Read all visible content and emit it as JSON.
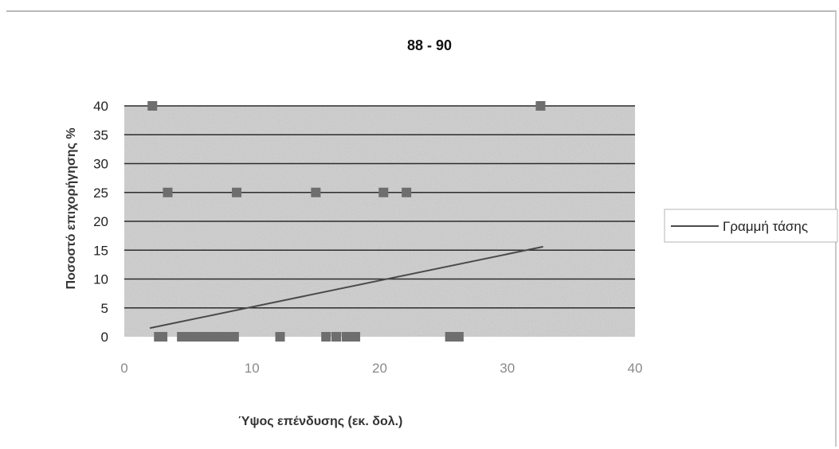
{
  "chart_data": {
    "type": "scatter",
    "title": "88 - 90",
    "xlabel": "Ύψος επένδυσης (εκ. δολ.)",
    "ylabel": "Ποσοστό επιχορήγησης %",
    "xlim": [
      0,
      40
    ],
    "ylim": [
      0,
      40
    ],
    "x_ticks": [
      0,
      10,
      20,
      30,
      40
    ],
    "y_ticks": [
      0,
      5,
      10,
      15,
      20,
      25,
      30,
      35,
      40
    ],
    "grid": "horizontal",
    "legend_position": "right",
    "colors": {
      "marker": "#6e6e6e",
      "trendline": "#4a4a4a",
      "plot_bg": "#cfcfcf",
      "gridline": "#2c2c2c"
    },
    "series": [
      {
        "type": "scatter",
        "x": [
          2.2,
          32.6,
          3.4,
          8.8,
          15.0,
          20.3,
          22.1,
          2.7,
          3.0,
          4.5,
          5.2,
          5.9,
          6.6,
          7.3,
          8.0,
          8.6,
          12.2,
          15.8,
          16.6,
          17.4,
          18.1,
          25.5,
          26.2
        ],
        "y": [
          40,
          40,
          25,
          25,
          25,
          25,
          25,
          0,
          0,
          0,
          0,
          0,
          0,
          0,
          0,
          0,
          0,
          0,
          0,
          0,
          0,
          0,
          0
        ]
      },
      {
        "name": "Γραμμή τάσης",
        "type": "line",
        "x": [
          2.0,
          32.8
        ],
        "y": [
          1.5,
          15.6
        ]
      }
    ]
  }
}
